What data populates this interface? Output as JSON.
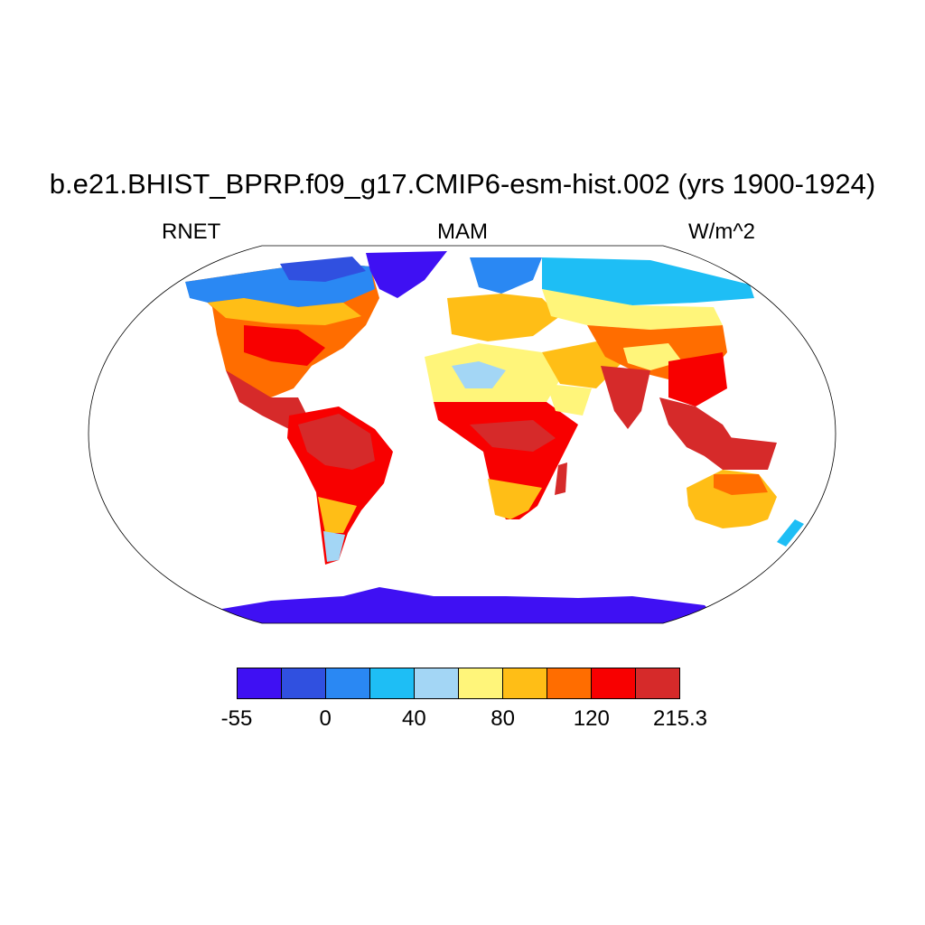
{
  "title": "b.e21.BHIST_BPRP.f09_g17.CMIP6-esm-hist.002 (yrs 1900-1924)",
  "left_label": "RNET",
  "center_label": "MAM",
  "right_label": "W/m^2",
  "projection": "robinson",
  "colorbar": {
    "colors": [
      "#3f10f3",
      "#3050e0",
      "#2a88f3",
      "#1ebef5",
      "#a3d6f5",
      "#fff57a",
      "#ffbe16",
      "#ff6d00",
      "#f80000",
      "#d62a2a"
    ],
    "labels": [
      "-55",
      "0",
      "40",
      "80",
      "120",
      "215.3"
    ]
  }
}
